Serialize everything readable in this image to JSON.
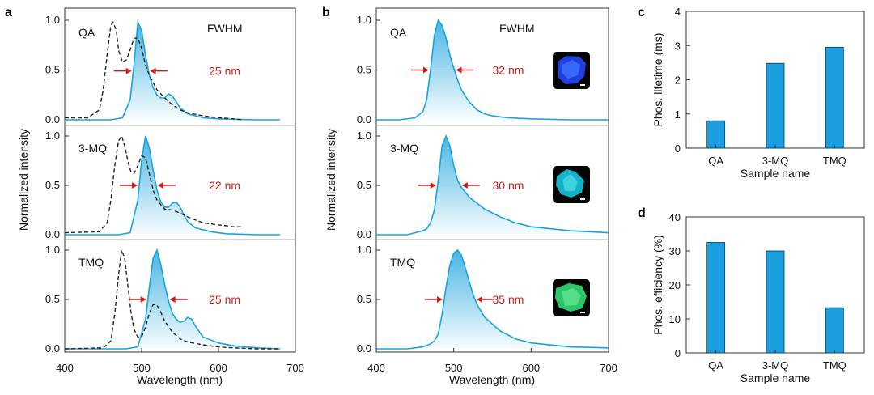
{
  "colors": {
    "pl": "#1aa3dc",
    "exc": "#222222",
    "arrow": "#d01c1c",
    "bar": "#1b9ee0",
    "bar_stroke": "#0b3b5e"
  },
  "panel_labels": {
    "a": "a",
    "b": "b",
    "c": "c",
    "d": "d"
  },
  "spectra_axes": {
    "xlabel": "Wavelength (nm)",
    "ylabel": "Normalized intensity",
    "xticks": [
      "400",
      "500",
      "600",
      "700"
    ],
    "yticks": [
      "0.0",
      "0.5",
      "1.0"
    ],
    "fwhm_header": "FWHM"
  },
  "chart_data": [
    {
      "panel": "a",
      "type": "line",
      "xlabel": "Wavelength (nm)",
      "ylabel": "Normalized intensity",
      "xlim": [
        400,
        700
      ],
      "ylim": [
        0,
        1.05
      ],
      "subplots": [
        {
          "sample": "QA",
          "fwhm_label": "25 nm",
          "series": [
            {
              "style": "solid",
              "x": [
                400,
                460,
                475,
                485,
                490,
                495,
                500,
                505,
                510,
                515,
                520,
                525,
                530,
                535,
                540,
                545,
                550,
                560,
                580,
                600,
                650,
                680
              ],
              "y": [
                0,
                0,
                0.02,
                0.2,
                0.55,
                0.98,
                0.9,
                0.65,
                0.45,
                0.32,
                0.25,
                0.22,
                0.22,
                0.26,
                0.24,
                0.18,
                0.12,
                0.06,
                0.02,
                0.01,
                0,
                0
              ]
            },
            {
              "style": "dashed",
              "x": [
                400,
                430,
                445,
                450,
                455,
                460,
                463,
                467,
                470,
                475,
                480,
                485,
                490,
                495,
                500,
                505,
                510,
                520,
                530,
                540,
                550,
                560,
                580,
                600,
                620,
                630
              ],
              "y": [
                0.02,
                0.02,
                0.1,
                0.3,
                0.65,
                0.95,
                0.98,
                0.9,
                0.7,
                0.58,
                0.6,
                0.7,
                0.82,
                0.82,
                0.72,
                0.55,
                0.45,
                0.3,
                0.22,
                0.15,
                0.1,
                0.07,
                0.04,
                0.02,
                0.01,
                0
              ]
            }
          ]
        },
        {
          "sample": "3-MQ",
          "fwhm_label": "22 nm",
          "series": [
            {
              "style": "solid",
              "x": [
                400,
                470,
                485,
                495,
                500,
                505,
                510,
                515,
                520,
                525,
                530,
                535,
                540,
                545,
                550,
                555,
                560,
                570,
                590,
                610,
                650,
                680
              ],
              "y": [
                0,
                0,
                0.02,
                0.35,
                0.75,
                1.0,
                0.88,
                0.65,
                0.45,
                0.33,
                0.28,
                0.28,
                0.32,
                0.33,
                0.28,
                0.2,
                0.13,
                0.07,
                0.03,
                0.01,
                0,
                0
              ]
            },
            {
              "style": "dashed",
              "x": [
                400,
                445,
                455,
                460,
                465,
                470,
                474,
                478,
                482,
                486,
                490,
                495,
                500,
                505,
                510,
                515,
                520,
                530,
                540,
                550,
                560,
                580,
                600,
                620,
                630
              ],
              "y": [
                0.02,
                0.03,
                0.12,
                0.35,
                0.7,
                0.95,
                1.0,
                0.9,
                0.75,
                0.64,
                0.62,
                0.7,
                0.8,
                0.78,
                0.62,
                0.45,
                0.35,
                0.26,
                0.25,
                0.22,
                0.18,
                0.12,
                0.1,
                0.08,
                0.08
              ]
            }
          ]
        },
        {
          "sample": "TMQ",
          "fwhm_label": "25 nm",
          "series": [
            {
              "style": "solid",
              "x": [
                400,
                480,
                495,
                505,
                510,
                515,
                520,
                525,
                530,
                535,
                540,
                545,
                550,
                555,
                560,
                565,
                570,
                580,
                600,
                620,
                650,
                680
              ],
              "y": [
                0,
                0,
                0.02,
                0.3,
                0.62,
                0.92,
                1.0,
                0.85,
                0.65,
                0.48,
                0.36,
                0.3,
                0.27,
                0.28,
                0.32,
                0.3,
                0.23,
                0.12,
                0.06,
                0.03,
                0.01,
                0
              ]
            },
            {
              "style": "dashed",
              "x": [
                400,
                450,
                460,
                465,
                470,
                474,
                478,
                482,
                486,
                490,
                495,
                500,
                505,
                510,
                515,
                520,
                525,
                530,
                540,
                550,
                560,
                580,
                600,
                620,
                650,
                680
              ],
              "y": [
                0,
                0.01,
                0.08,
                0.35,
                0.75,
                1.0,
                0.92,
                0.65,
                0.38,
                0.2,
                0.12,
                0.12,
                0.22,
                0.36,
                0.45,
                0.44,
                0.37,
                0.28,
                0.17,
                0.1,
                0.07,
                0.04,
                0.02,
                0.01,
                0,
                0
              ]
            }
          ]
        }
      ]
    },
    {
      "panel": "b",
      "type": "line",
      "xlabel": "Wavelength (nm)",
      "ylabel": "Normalized intensity",
      "xlim": [
        400,
        700
      ],
      "ylim": [
        0,
        1.05
      ],
      "subplots": [
        {
          "sample": "QA",
          "fwhm_label": "32 nm",
          "series": [
            {
              "style": "solid",
              "x": [
                400,
                430,
                450,
                460,
                465,
                470,
                475,
                480,
                485,
                490,
                495,
                500,
                505,
                510,
                520,
                530,
                540,
                550,
                570,
                600,
                650,
                700
              ],
              "y": [
                0,
                0,
                0.02,
                0.08,
                0.2,
                0.5,
                0.85,
                1.0,
                0.95,
                0.82,
                0.65,
                0.52,
                0.4,
                0.3,
                0.18,
                0.1,
                0.06,
                0.04,
                0.02,
                0.01,
                0,
                0
              ]
            }
          ]
        },
        {
          "sample": "3-MQ",
          "fwhm_label": "30 nm",
          "series": [
            {
              "style": "solid",
              "x": [
                400,
                440,
                450,
                460,
                465,
                470,
                475,
                480,
                485,
                490,
                495,
                500,
                505,
                510,
                520,
                530,
                540,
                560,
                580,
                600,
                650,
                700
              ],
              "y": [
                0,
                0,
                0.02,
                0.04,
                0.06,
                0.12,
                0.25,
                0.55,
                0.9,
                1.0,
                0.9,
                0.7,
                0.55,
                0.48,
                0.38,
                0.32,
                0.26,
                0.18,
                0.12,
                0.08,
                0.04,
                0.02
              ]
            }
          ]
        },
        {
          "sample": "TMQ",
          "fwhm_label": "35 nm",
          "series": [
            {
              "style": "solid",
              "x": [
                400,
                440,
                460,
                470,
                475,
                480,
                485,
                490,
                495,
                500,
                505,
                510,
                515,
                520,
                525,
                530,
                540,
                560,
                580,
                600,
                650,
                700
              ],
              "y": [
                0,
                0,
                0.02,
                0.05,
                0.08,
                0.15,
                0.35,
                0.62,
                0.85,
                0.97,
                1.0,
                0.95,
                0.82,
                0.68,
                0.55,
                0.45,
                0.32,
                0.18,
                0.1,
                0.06,
                0.02,
                0.01
              ]
            }
          ]
        }
      ]
    },
    {
      "panel": "c",
      "type": "bar",
      "categories": [
        "QA",
        "3-MQ",
        "TMQ"
      ],
      "values": [
        0.8,
        2.48,
        2.95
      ],
      "xlabel": "Sample name",
      "ylabel": "Phos. lifetime (ms)",
      "ylim": [
        0,
        4
      ],
      "yticks": [
        "0",
        "1",
        "2",
        "3",
        "4"
      ]
    },
    {
      "panel": "d",
      "type": "bar",
      "categories": [
        "QA",
        "3-MQ",
        "TMQ"
      ],
      "values": [
        32.5,
        30.0,
        13.3
      ],
      "xlabel": "Sample name",
      "ylabel": "Phos. efficiency (%)",
      "ylim": [
        0,
        40
      ],
      "yticks": [
        "0",
        "10",
        "20",
        "30",
        "40"
      ]
    }
  ]
}
